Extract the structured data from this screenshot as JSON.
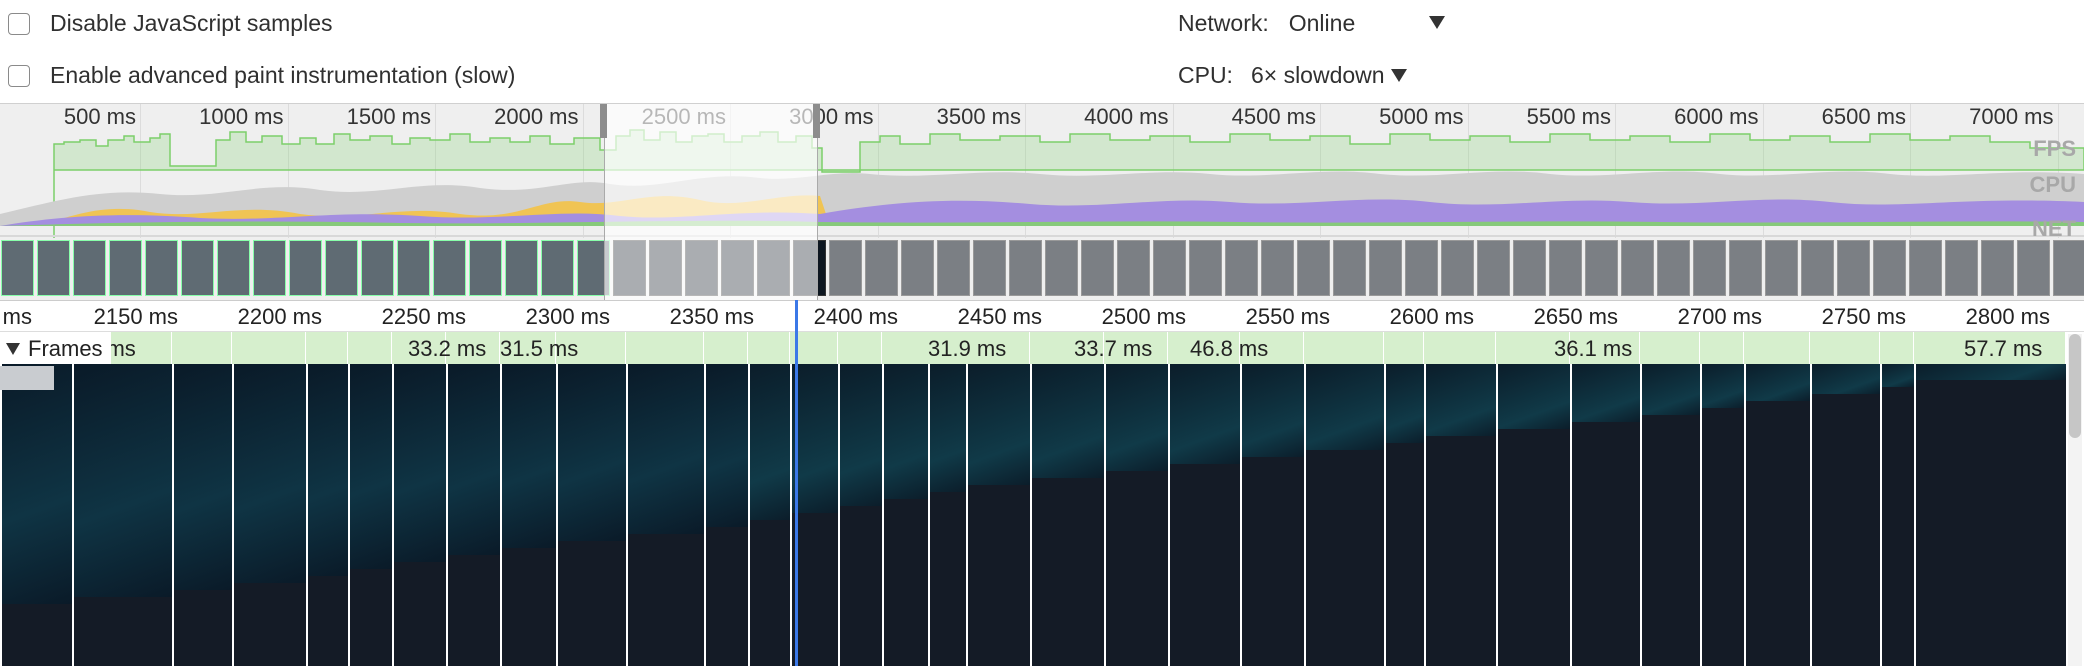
{
  "settings": {
    "disable_js_samples": "Disable JavaScript samples",
    "advanced_paint": "Enable advanced paint instrumentation (slow)",
    "network_label": "Network:",
    "network_value": "Online",
    "cpu_label": "CPU:",
    "cpu_value": "6× slowdown"
  },
  "overview": {
    "ticks": [
      "500 ms",
      "1000 ms",
      "1500 ms",
      "2000 ms",
      "2500 ms",
      "3000 ms",
      "3500 ms",
      "4000 ms",
      "4500 ms",
      "5000 ms",
      "5500 ms",
      "6000 ms",
      "6500 ms",
      "7000 ms"
    ],
    "tracks": [
      "FPS",
      "CPU",
      "NET"
    ]
  },
  "main_ruler": {
    "ticks": [
      "ms",
      "2150 ms",
      "2200 ms",
      "2250 ms",
      "2300 ms",
      "2350 ms",
      "2400 ms",
      "2450 ms",
      "2500 ms",
      "2550 ms",
      "2600 ms",
      "2650 ms",
      "2700 ms",
      "2750 ms",
      "2800 ms"
    ]
  },
  "frames": {
    "label": "Frames",
    "durations": [
      ".7 ms",
      "33.2 ms",
      "31.5 ms",
      "31.9 ms",
      "33.7 ms",
      "46.8 ms",
      "36.1 ms",
      "57.7 ms"
    ]
  },
  "colors": {
    "fps_green": "#7ccf6a",
    "cpu_purple": "#a48ee0",
    "cpu_yellow": "#f0c454",
    "cpu_gray": "#c8c8c8",
    "frame_green": "#d6efcd",
    "cursor_blue": "#3b78e7"
  }
}
